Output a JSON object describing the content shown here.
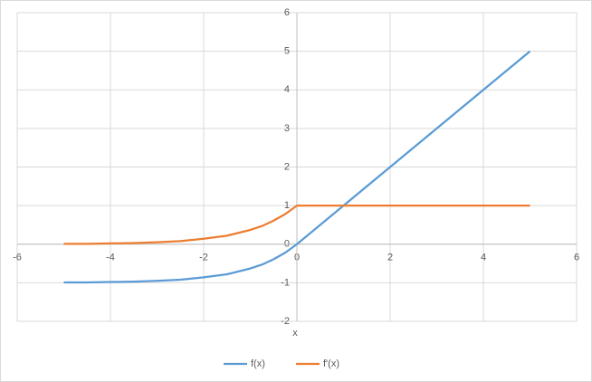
{
  "chart_data": {
    "type": "line",
    "x_label": "x",
    "x": [
      -5,
      -4.5,
      -4,
      -3.5,
      -3,
      -2.5,
      -2,
      -1.5,
      -1,
      -0.75,
      -0.5,
      -0.25,
      0,
      1,
      2,
      3,
      4,
      5
    ],
    "series": [
      {
        "name": "f(x)",
        "color": "#5b9bd5",
        "values": [
          -0.99,
          -0.99,
          -0.98,
          -0.97,
          -0.95,
          -0.92,
          -0.86,
          -0.78,
          -0.63,
          -0.53,
          -0.39,
          -0.22,
          0,
          1,
          2,
          3,
          4,
          5
        ]
      },
      {
        "name": "f'(x)",
        "color": "#ed7d31",
        "values": [
          0.01,
          0.01,
          0.02,
          0.03,
          0.05,
          0.08,
          0.14,
          0.22,
          0.37,
          0.47,
          0.61,
          0.78,
          1,
          1,
          1,
          1,
          1,
          1
        ]
      }
    ],
    "xlim": [
      -6,
      6
    ],
    "xticks": [
      -6,
      -4,
      -2,
      0,
      2,
      4,
      6
    ],
    "ylim": [
      -2,
      6
    ],
    "yticks": [
      -2,
      -1,
      0,
      1,
      2,
      3,
      4,
      5,
      6
    ],
    "grid": true,
    "legend": "bottom"
  }
}
